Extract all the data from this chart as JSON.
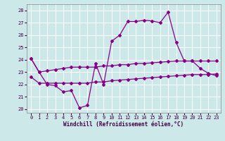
{
  "xlabel": "Windchill (Refroidissement éolien,°C)",
  "background_color": "#cce8e8",
  "line_color": "#880088",
  "xlim": [
    -0.5,
    23.5
  ],
  "ylim": [
    19.7,
    28.5
  ],
  "yticks": [
    20,
    21,
    22,
    23,
    24,
    25,
    26,
    27,
    28
  ],
  "xticks": [
    0,
    1,
    2,
    3,
    4,
    5,
    6,
    7,
    8,
    9,
    10,
    11,
    12,
    13,
    14,
    15,
    16,
    17,
    18,
    19,
    20,
    21,
    22,
    23
  ],
  "line1_x": [
    0,
    1,
    2,
    3,
    4,
    5,
    6,
    7,
    8,
    9,
    10,
    11,
    12,
    13,
    14,
    15,
    16,
    17,
    18,
    19,
    20,
    21,
    22,
    23
  ],
  "line1_y": [
    24.1,
    23.0,
    22.0,
    21.9,
    21.4,
    21.5,
    20.1,
    20.3,
    23.7,
    22.0,
    25.5,
    26.0,
    27.1,
    27.1,
    27.2,
    27.15,
    27.0,
    27.85,
    25.4,
    23.9,
    23.9,
    23.3,
    22.9,
    22.7
  ],
  "line2_x": [
    0,
    1,
    2,
    3,
    4,
    5,
    6,
    7,
    8,
    9,
    10,
    11,
    12,
    13,
    14,
    15,
    16,
    17,
    18,
    19,
    20,
    21,
    22,
    23
  ],
  "line2_y": [
    24.1,
    23.0,
    23.1,
    23.2,
    23.3,
    23.4,
    23.4,
    23.4,
    23.4,
    23.5,
    23.5,
    23.6,
    23.6,
    23.7,
    23.7,
    23.75,
    23.8,
    23.85,
    23.9,
    23.9,
    23.9,
    23.9,
    23.9,
    23.9
  ],
  "line3_x": [
    0,
    1,
    2,
    3,
    4,
    5,
    6,
    7,
    8,
    9,
    10,
    11,
    12,
    13,
    14,
    15,
    16,
    17,
    18,
    19,
    20,
    21,
    22,
    23
  ],
  "line3_y": [
    22.6,
    22.1,
    22.1,
    22.1,
    22.1,
    22.1,
    22.1,
    22.1,
    22.2,
    22.2,
    22.3,
    22.35,
    22.4,
    22.45,
    22.5,
    22.55,
    22.6,
    22.65,
    22.7,
    22.75,
    22.8,
    22.8,
    22.8,
    22.85
  ]
}
